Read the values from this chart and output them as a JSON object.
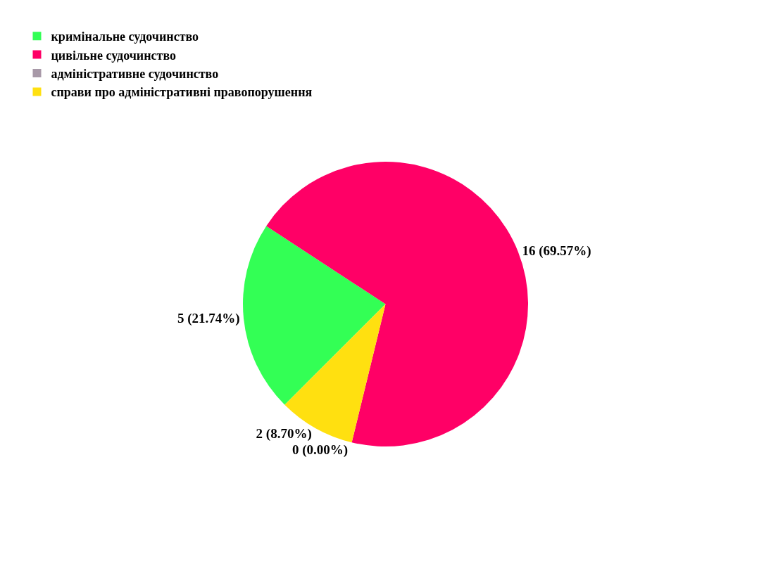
{
  "chart_data": {
    "type": "pie",
    "categories": [
      "кримінальне судочинство",
      "цивільне судочинство",
      "адміністративне судочинство",
      "справи про адміністративні правопорушення"
    ],
    "values": [
      5,
      16,
      0,
      2
    ],
    "colors": [
      "#33ff55",
      "#ff0066",
      "#a899a8",
      "#ffe010"
    ],
    "value_labels": [
      "5 (21.74%)",
      "16 (69.57%)",
      "0 (0.00%)",
      "2 (8.70%)"
    ],
    "legend": "top left"
  }
}
